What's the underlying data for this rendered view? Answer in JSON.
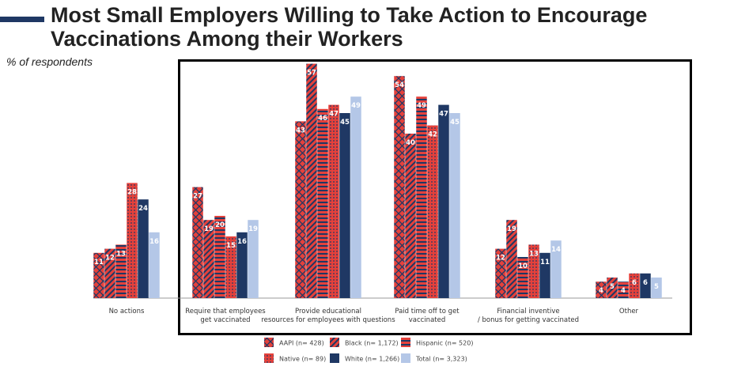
{
  "title": "Most Small Employers Willing to Take Action to Encourage Vaccinations Among their Workers",
  "subtitle": "% of respondents",
  "chart_data": {
    "type": "bar",
    "title": "Most Small Employers Willing to Take Action to Encourage Vaccinations Among their Workers",
    "ylabel": "% of respondents",
    "ylim": [
      0,
      60
    ],
    "grid": false,
    "legend_position": "bottom",
    "highlight_box": [
      "Require that employees get vaccinated",
      "Provide educational resources for employees with questions",
      "Paid time off to get vaccinated",
      "Financial inventive / bonus for getting vaccinated",
      "Other"
    ],
    "categories": [
      "No actions",
      "Require that employees get vaccinated",
      "Provide educational resources for employees with questions",
      "Paid time off to get vaccinated",
      "Financial inventive / bonus for getting vaccinated",
      "Other"
    ],
    "series": [
      {
        "name": "AAPI (n= 428)",
        "color": "#e5413b",
        "pattern": "crosshatch",
        "values": [
          11,
          27,
          43,
          54,
          12,
          4
        ]
      },
      {
        "name": "Black (n= 1,172)",
        "color": "#e5413b",
        "pattern": "diagonal-stripes",
        "values": [
          12,
          19,
          57,
          40,
          19,
          5
        ]
      },
      {
        "name": "Hispanic (n= 520)",
        "color": "#e5413b",
        "pattern": "horizontal-stripes",
        "values": [
          13,
          20,
          46,
          49,
          10,
          4
        ]
      },
      {
        "name": "Native (n= 89)",
        "color": "#e5413b",
        "pattern": "dots",
        "values": [
          28,
          15,
          47,
          42,
          13,
          6
        ]
      },
      {
        "name": "White (n= 1,266)",
        "color": "#1f3864",
        "pattern": "solid",
        "values": [
          24,
          16,
          45,
          47,
          11,
          6
        ]
      },
      {
        "name": "Total (n= 3,323)",
        "color": "#b4c7e7",
        "pattern": "solid",
        "values": [
          16,
          19,
          49,
          45,
          14,
          5
        ]
      }
    ]
  }
}
